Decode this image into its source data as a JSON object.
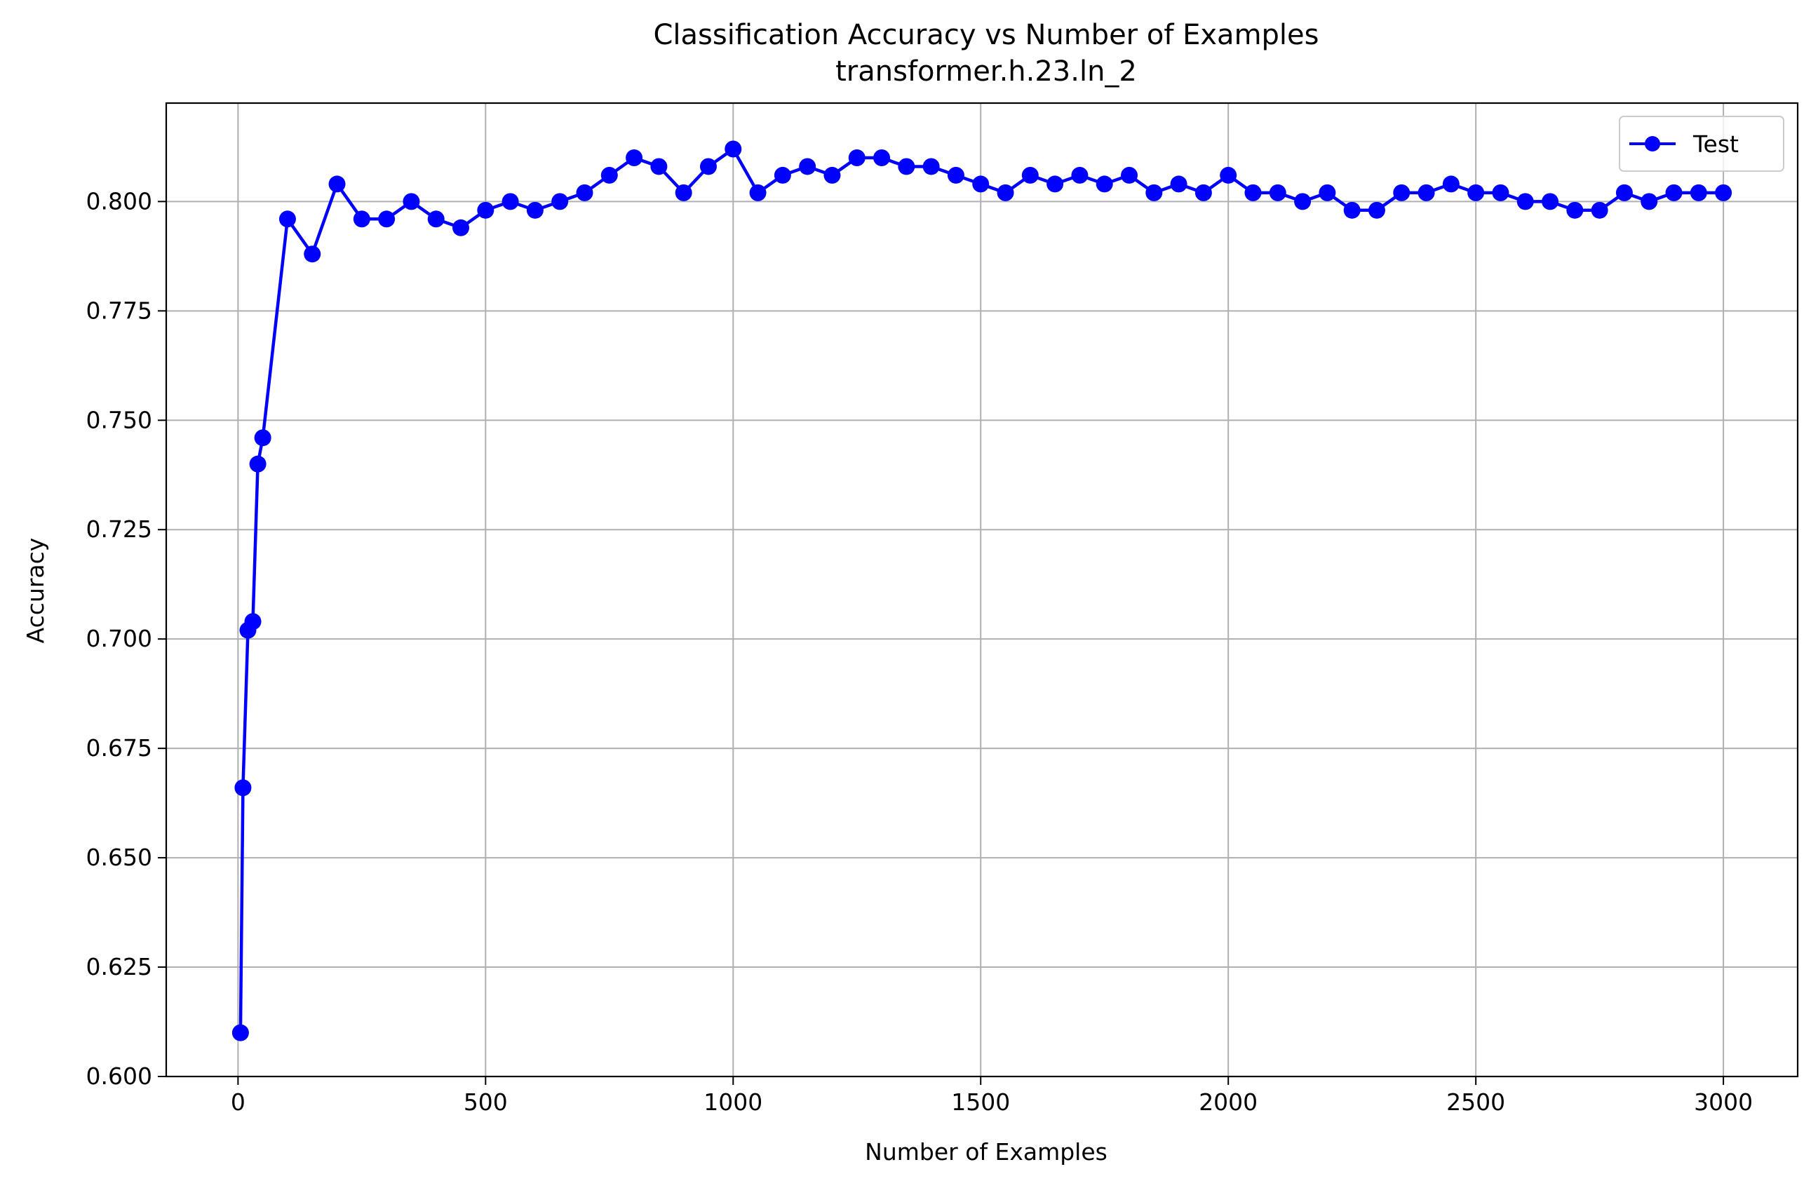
{
  "chart_data": {
    "type": "line",
    "title": "Classification Accuracy vs Number of Examples",
    "subtitle": "transformer.h.23.ln_2",
    "xlabel": "Number of Examples",
    "ylabel": "Accuracy",
    "xlim": [
      -145,
      3150
    ],
    "ylim": [
      0.6,
      0.8225
    ],
    "xticks": [
      0,
      500,
      1000,
      1500,
      2000,
      2500,
      3000
    ],
    "xtick_labels": [
      "0",
      "500",
      "1000",
      "1500",
      "2000",
      "2500",
      "3000"
    ],
    "yticks": [
      0.6,
      0.625,
      0.65,
      0.675,
      0.7,
      0.725,
      0.75,
      0.775,
      0.8
    ],
    "ytick_labels": [
      "0.600",
      "0.625",
      "0.650",
      "0.675",
      "0.700",
      "0.725",
      "0.750",
      "0.775",
      "0.800"
    ],
    "grid": true,
    "legend_position": "upper right",
    "series": [
      {
        "name": "Test",
        "color": "#0000ff",
        "marker": "circle",
        "x": [
          5,
          10,
          20,
          30,
          40,
          50,
          100,
          150,
          200,
          250,
          300,
          350,
          400,
          450,
          500,
          550,
          600,
          650,
          700,
          750,
          800,
          850,
          900,
          950,
          1000,
          1050,
          1100,
          1150,
          1200,
          1250,
          1300,
          1350,
          1400,
          1450,
          1500,
          1550,
          1600,
          1650,
          1700,
          1750,
          1800,
          1850,
          1900,
          1950,
          2000,
          2050,
          2100,
          2150,
          2200,
          2250,
          2300,
          2350,
          2400,
          2450,
          2500,
          2550,
          2600,
          2650,
          2700,
          2750,
          2800,
          2850,
          2900,
          2950,
          3000
        ],
        "y": [
          0.61,
          0.666,
          0.702,
          0.704,
          0.74,
          0.746,
          0.796,
          0.788,
          0.804,
          0.796,
          0.796,
          0.8,
          0.796,
          0.794,
          0.798,
          0.8,
          0.798,
          0.8,
          0.802,
          0.806,
          0.81,
          0.808,
          0.802,
          0.808,
          0.812,
          0.802,
          0.806,
          0.808,
          0.806,
          0.81,
          0.81,
          0.808,
          0.808,
          0.806,
          0.804,
          0.802,
          0.806,
          0.804,
          0.806,
          0.804,
          0.806,
          0.802,
          0.804,
          0.802,
          0.806,
          0.802,
          0.802,
          0.8,
          0.802,
          0.798,
          0.798,
          0.802,
          0.802,
          0.804,
          0.802,
          0.802,
          0.8,
          0.8,
          0.798,
          0.798,
          0.802,
          0.8,
          0.802,
          0.802,
          0.802
        ]
      }
    ]
  }
}
